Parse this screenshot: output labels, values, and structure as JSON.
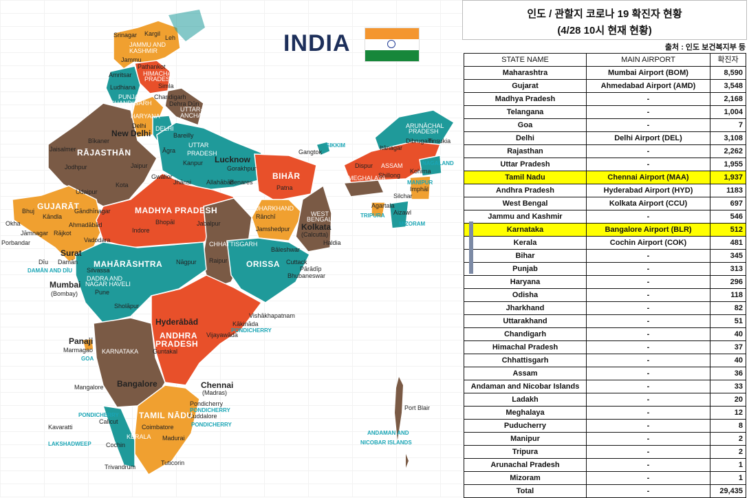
{
  "map": {
    "title": "INDIA",
    "labels": [
      {
        "name": "srinagar",
        "text": "Srinagar"
      },
      {
        "name": "kargil",
        "text": "Kargil"
      },
      {
        "name": "leh",
        "text": "Leh"
      },
      {
        "name": "jk",
        "text": "JAMMU AND"
      },
      {
        "name": "jk2",
        "text": "KASHMIR"
      },
      {
        "name": "jammu",
        "text": "Jammu"
      },
      {
        "name": "amritsar",
        "text": "Amritsar"
      },
      {
        "name": "pathankot",
        "text": "Pathankot"
      },
      {
        "name": "hp",
        "text": "HIMACHAL"
      },
      {
        "name": "hp2",
        "text": "PRADESH"
      },
      {
        "name": "ludhiana",
        "text": "Ludhiana"
      },
      {
        "name": "shimla",
        "text": "Simla"
      },
      {
        "name": "punjab",
        "text": "PUNJAB"
      },
      {
        "name": "chandigarh",
        "text": "CHANDIGARH"
      },
      {
        "name": "chandigarh2",
        "text": "Chandigarh"
      },
      {
        "name": "dehradun",
        "text": "Dehra Dūn"
      },
      {
        "name": "uttaranchal",
        "text": "UTTAR-"
      },
      {
        "name": "uttaranchal2",
        "text": "ANCHAL"
      },
      {
        "name": "haryana",
        "text": "HARYANA"
      },
      {
        "name": "delhi",
        "text": "Delhi"
      },
      {
        "name": "newdelhi",
        "text": "New Delhi"
      },
      {
        "name": "delhiL",
        "text": "DELHI"
      },
      {
        "name": "bikaner",
        "text": "Bīkaner"
      },
      {
        "name": "bareilly",
        "text": "Bareilly"
      },
      {
        "name": "rajasthan",
        "text": "RĀJASTHĀN"
      },
      {
        "name": "jaisalmer",
        "text": "Jaisalmer"
      },
      {
        "name": "jodhpur",
        "text": "Jodhpur"
      },
      {
        "name": "jaipur",
        "text": "Jaipur"
      },
      {
        "name": "agra",
        "text": "Āgra"
      },
      {
        "name": "up",
        "text": "UTTAR"
      },
      {
        "name": "up2",
        "text": "PRADESH"
      },
      {
        "name": "kanpur",
        "text": "Kanpur"
      },
      {
        "name": "lucknow",
        "text": "Lucknow"
      },
      {
        "name": "gorakhpur",
        "text": "Gorakhpur"
      },
      {
        "name": "gangtok",
        "text": "Gangtok"
      },
      {
        "name": "sikkim",
        "text": "SIKKIM"
      },
      {
        "name": "arunachal",
        "text": "ARUNĀCHAL"
      },
      {
        "name": "arunachal2",
        "text": "PRADESH"
      },
      {
        "name": "itanagar",
        "text": "Itānagar"
      },
      {
        "name": "dibrugarh",
        "text": "Dibrugarh"
      },
      {
        "name": "tinsukia",
        "text": "Tinsukia"
      },
      {
        "name": "assam",
        "text": "ASSAM"
      },
      {
        "name": "nagaland",
        "text": "NAGALAND"
      },
      {
        "name": "dispur",
        "text": "Dispur"
      },
      {
        "name": "meghalaya",
        "text": "MEGHALAYA"
      },
      {
        "name": "shillong",
        "text": "Shillong"
      },
      {
        "name": "kohima",
        "text": "Kohima"
      },
      {
        "name": "manipur",
        "text": "MANIPUR"
      },
      {
        "name": "imphal",
        "text": "Imphāl"
      },
      {
        "name": "silchar",
        "text": "Silchar"
      },
      {
        "name": "agartala",
        "text": "Agartala"
      },
      {
        "name": "tripura",
        "text": "TRIPURA"
      },
      {
        "name": "aizawl",
        "text": "Aizawl"
      },
      {
        "name": "mizoram",
        "text": "MIZORAM"
      },
      {
        "name": "udaipur",
        "text": "Udaipur"
      },
      {
        "name": "kota",
        "text": "Kota"
      },
      {
        "name": "gwalior",
        "text": "Gwalior"
      },
      {
        "name": "jhansi",
        "text": "Jhānsi"
      },
      {
        "name": "allahabad",
        "text": "Allahābād"
      },
      {
        "name": "benares",
        "text": "Benares"
      },
      {
        "name": "bihar",
        "text": "BIHĀR"
      },
      {
        "name": "patna",
        "text": "Patna"
      },
      {
        "name": "gujarat",
        "text": "GUJARĀT"
      },
      {
        "name": "bhuj",
        "text": "Bhuj"
      },
      {
        "name": "kandla",
        "text": "Kāndla"
      },
      {
        "name": "gandhinagar",
        "text": "Gāndhīnagar"
      },
      {
        "name": "ahmedabad",
        "text": "Ahmadābād"
      },
      {
        "name": "okha",
        "text": "Okha"
      },
      {
        "name": "jamnagar",
        "text": "Jāmnagar"
      },
      {
        "name": "rajkot",
        "text": "Rājkot"
      },
      {
        "name": "vadodara",
        "text": "Vadodara"
      },
      {
        "name": "porbandar",
        "text": "Porbandar"
      },
      {
        "name": "mp",
        "text": "MADHYA PRADESH"
      },
      {
        "name": "indore",
        "text": "Indore"
      },
      {
        "name": "bhopal",
        "text": "Bhopāl"
      },
      {
        "name": "jabalpur",
        "text": "Jabalpur"
      },
      {
        "name": "jharkhand",
        "text": "JHARKHAND"
      },
      {
        "name": "ranchi",
        "text": "Rānchī"
      },
      {
        "name": "wb",
        "text": "WEST"
      },
      {
        "name": "wb2",
        "text": "BENGAL"
      },
      {
        "name": "kolkata",
        "text": "Kolkata"
      },
      {
        "name": "calcutta",
        "text": "(Calcutta)"
      },
      {
        "name": "haldia",
        "text": "Haldia"
      },
      {
        "name": "jamshedpur",
        "text": "Jamshedpur"
      },
      {
        "name": "chhattisgarh",
        "text": "CHHATTISGARH"
      },
      {
        "name": "surat",
        "text": "Surat"
      },
      {
        "name": "diu",
        "text": "Dīu"
      },
      {
        "name": "daman",
        "text": "Damān"
      },
      {
        "name": "damandiu",
        "text": "DAMĀN AND DĪU"
      },
      {
        "name": "maharashtra",
        "text": "MAHĀRĀSHTRA"
      },
      {
        "name": "silvassa",
        "text": "Silvassa"
      },
      {
        "name": "dadra",
        "text": "DADRA AND"
      },
      {
        "name": "dadra2",
        "text": "NAGAR HAVELI"
      },
      {
        "name": "nagpur",
        "text": "Nāgpur"
      },
      {
        "name": "raipur",
        "text": "Raipur"
      },
      {
        "name": "baleshwar",
        "text": "Bāleshwar"
      },
      {
        "name": "orissa",
        "text": "ORISSA"
      },
      {
        "name": "cuttack",
        "text": "Cuttack"
      },
      {
        "name": "paradip",
        "text": "Pārādīp"
      },
      {
        "name": "bhubaneswar",
        "text": "Bhubaneswar"
      },
      {
        "name": "mumbai",
        "text": "Mumbai"
      },
      {
        "name": "bombay",
        "text": "(Bombay)"
      },
      {
        "name": "pune",
        "text": "Pune"
      },
      {
        "name": "sholapur",
        "text": "Sholāpur"
      },
      {
        "name": "vishakhapatnam",
        "text": "Vishākhapatnam"
      },
      {
        "name": "hyderabad",
        "text": "Hyderābād"
      },
      {
        "name": "ap",
        "text": "ANDHRA"
      },
      {
        "name": "ap2",
        "text": "PRADESH"
      },
      {
        "name": "kakinada",
        "text": "Kākināda"
      },
      {
        "name": "pondicherryL",
        "text": "PONDICHERRY"
      },
      {
        "name": "vijayawada",
        "text": "Vijayawāda"
      },
      {
        "name": "panaji",
        "text": "Panaji"
      },
      {
        "name": "marmagao",
        "text": "Marmagao"
      },
      {
        "name": "goa",
        "text": "GOA"
      },
      {
        "name": "karnataka",
        "text": "KARNATAKA"
      },
      {
        "name": "guntakal",
        "text": "Guntakal"
      },
      {
        "name": "bangalore",
        "text": "Bangalore"
      },
      {
        "name": "mangalore",
        "text": "Mangalore"
      },
      {
        "name": "chennai",
        "text": "Chennai"
      },
      {
        "name": "madras",
        "text": "(Madras)"
      },
      {
        "name": "pondicherry",
        "text": "Pondicherry"
      },
      {
        "name": "pondicherry2",
        "text": "PONDICHERRY"
      },
      {
        "name": "cuddalore",
        "text": "Cuddalore"
      },
      {
        "name": "pondicherry3",
        "text": "PONDICHERRY"
      },
      {
        "name": "tamilnadu",
        "text": "TAMIL NĀDU"
      },
      {
        "name": "calicut",
        "text": "Calicut"
      },
      {
        "name": "pondicherry4",
        "text": "PONDICHERRY"
      },
      {
        "name": "coimbatore",
        "text": "Coimbatore"
      },
      {
        "name": "kavaratti",
        "text": "Kavaratti"
      },
      {
        "name": "kerala",
        "text": "KERALA"
      },
      {
        "name": "madurai",
        "text": "Madurai"
      },
      {
        "name": "lakshadweep",
        "text": "LAKSHADWEEP"
      },
      {
        "name": "cochin",
        "text": "Cochin"
      },
      {
        "name": "trivandrum",
        "text": "Trivandrum"
      },
      {
        "name": "tuticorin",
        "text": "Tuticorin"
      },
      {
        "name": "portblair",
        "text": "Port Blair"
      },
      {
        "name": "andaman",
        "text": "ANDAMAN AND"
      },
      {
        "name": "andaman2",
        "text": "NICOBAR ISLANDS"
      }
    ]
  },
  "header": {
    "title_line1": "인도 / 관할지 코로나 19 확진자 현황",
    "title_line2": "(4/28 10시 현재 현황)",
    "source": "출처 : 인도 보건복지부 등"
  },
  "table": {
    "columns": [
      "STATE NAME",
      "MAIN AIRPORT",
      "확진자"
    ],
    "rows": [
      {
        "state": "Maharashtra",
        "airport": "Mumbai Airport (BOM)",
        "cases": "8,590",
        "highlight": false
      },
      {
        "state": "Gujarat",
        "airport": "Ahmedabad Airport (AMD)",
        "cases": "3,548",
        "highlight": false
      },
      {
        "state": "Madhya Pradesh",
        "airport": "-",
        "cases": "2,168",
        "highlight": false
      },
      {
        "state": "Telangana",
        "airport": "-",
        "cases": "1,004",
        "highlight": false
      },
      {
        "state": "Goa",
        "airport": "-",
        "cases": "7",
        "highlight": false
      },
      {
        "state": "Delhi",
        "airport": "Delhi Airport (DEL)",
        "cases": "3,108",
        "highlight": false
      },
      {
        "state": "Rajasthan",
        "airport": "-",
        "cases": "2,262",
        "highlight": false
      },
      {
        "state": "Uttar Pradesh",
        "airport": "-",
        "cases": "1,955",
        "highlight": false
      },
      {
        "state": "Tamil Nadu",
        "airport": "Chennai Airport (MAA)",
        "cases": "1,937",
        "highlight": true
      },
      {
        "state": "Andhra Pradesh",
        "airport": "Hyderabad Airport (HYD)",
        "cases": "1183",
        "highlight": false
      },
      {
        "state": "West Bengal",
        "airport": "Kolkata Airport (CCU)",
        "cases": "697",
        "highlight": false
      },
      {
        "state": "Jammu and Kashmir",
        "airport": "-",
        "cases": "546",
        "highlight": false
      },
      {
        "state": "Karnataka",
        "airport": "Bangalore Airport (BLR)",
        "cases": "512",
        "highlight": true
      },
      {
        "state": "Kerala",
        "airport": "Cochin Airport (COK)",
        "cases": "481",
        "highlight": false
      },
      {
        "state": "Bihar",
        "airport": "-",
        "cases": "345",
        "highlight": false
      },
      {
        "state": "Punjab",
        "airport": "-",
        "cases": "313",
        "highlight": false
      },
      {
        "state": "Haryana",
        "airport": "-",
        "cases": "296",
        "highlight": false
      },
      {
        "state": "Odisha",
        "airport": "-",
        "cases": "118",
        "highlight": false
      },
      {
        "state": "Jharkhand",
        "airport": "-",
        "cases": "82",
        "highlight": false
      },
      {
        "state": "Uttarakhand",
        "airport": "-",
        "cases": "51",
        "highlight": false
      },
      {
        "state": "Chandigarh",
        "airport": "-",
        "cases": "40",
        "highlight": false
      },
      {
        "state": "Himachal Pradesh",
        "airport": "-",
        "cases": "37",
        "highlight": false
      },
      {
        "state": "Chhattisgarh",
        "airport": "-",
        "cases": "40",
        "highlight": false
      },
      {
        "state": "Assam",
        "airport": "-",
        "cases": "36",
        "highlight": false
      },
      {
        "state": "Andaman and Nicobar Islands",
        "airport": "-",
        "cases": "33",
        "highlight": false
      },
      {
        "state": "Ladakh",
        "airport": "-",
        "cases": "20",
        "highlight": false
      },
      {
        "state": "Meghalaya",
        "airport": "-",
        "cases": "12",
        "highlight": false
      },
      {
        "state": "Puducherry",
        "airport": "-",
        "cases": "8",
        "highlight": false
      },
      {
        "state": "Manipur",
        "airport": "-",
        "cases": "2",
        "highlight": false
      },
      {
        "state": "Tripura",
        "airport": "-",
        "cases": "2",
        "highlight": false
      },
      {
        "state": "Arunachal Pradesh",
        "airport": "-",
        "cases": "1",
        "highlight": false
      },
      {
        "state": "Mizoram",
        "airport": "-",
        "cases": "1",
        "highlight": false
      },
      {
        "state": "Total",
        "airport": "-",
        "cases": "29,435",
        "highlight": false
      }
    ]
  },
  "colors": {
    "orange": "#f0a030",
    "red": "#e8502a",
    "teal": "#1f9a9a",
    "brown": "#7a5a45",
    "highlight": "#ffff00"
  }
}
